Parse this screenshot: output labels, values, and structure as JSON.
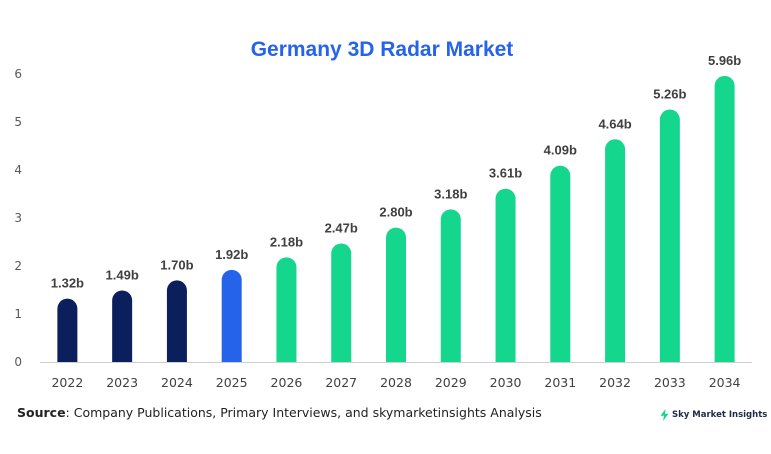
{
  "chart_data": {
    "type": "bar",
    "title": "Germany 3D Radar Market",
    "categories": [
      "2022",
      "2023",
      "2024",
      "2025",
      "2026",
      "2027",
      "2028",
      "2029",
      "2030",
      "2031",
      "2032",
      "2033",
      "2034"
    ],
    "values": [
      1.32,
      1.49,
      1.7,
      1.92,
      2.18,
      2.47,
      2.8,
      3.18,
      3.61,
      4.09,
      4.64,
      5.26,
      5.96
    ],
    "data_labels": [
      "1.32b",
      "1.49b",
      "1.70b",
      "1.92b",
      "2.18b",
      "2.47b",
      "2.80b",
      "3.18b",
      "3.61b",
      "4.09b",
      "4.64b",
      "5.26b",
      "5.96b"
    ],
    "bar_colors": [
      "#0b1f5c",
      "#0b1f5c",
      "#0b1f5c",
      "#2563eb",
      "#14d68c",
      "#14d68c",
      "#14d68c",
      "#14d68c",
      "#14d68c",
      "#14d68c",
      "#14d68c",
      "#14d68c",
      "#14d68c"
    ],
    "ylim": [
      0,
      6
    ],
    "yticks": [
      0,
      1,
      2,
      3,
      4,
      5,
      6
    ],
    "xlabel": "",
    "ylabel": "",
    "grid": false,
    "title_color": "#2563eb"
  },
  "footer": {
    "source_label": "Source",
    "source_text": ": Company Publications, Primary Interviews, and skymarketinsights Analysis",
    "brand": "Sky Market Insights",
    "brand_icon": "lightning-bolt-icon"
  }
}
